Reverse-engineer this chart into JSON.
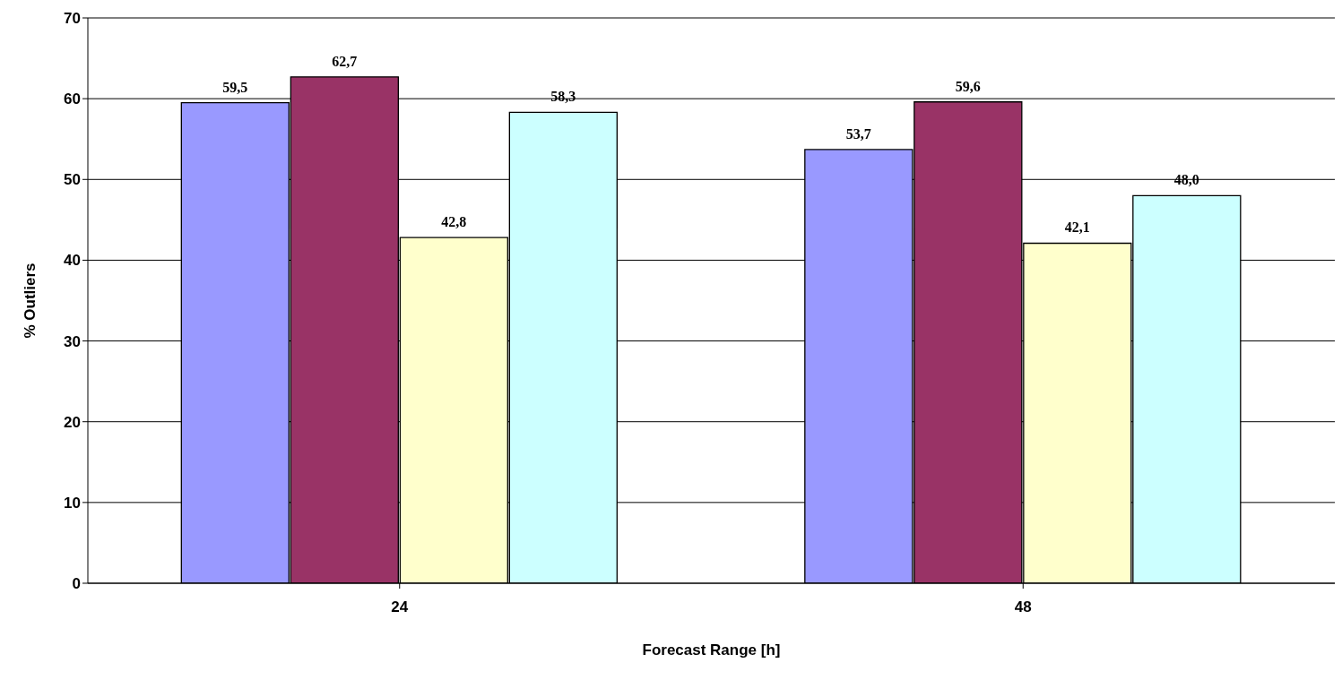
{
  "chart_data": {
    "type": "bar",
    "xlabel": "Forecast Range [h]",
    "ylabel": "% Outliers",
    "categories": [
      "24",
      "48"
    ],
    "series": [
      {
        "color": "#9999ff",
        "values": [
          59.5,
          53.7
        ],
        "value_labels": [
          "59,5",
          "53,7"
        ]
      },
      {
        "color": "#993366",
        "values": [
          62.7,
          59.6
        ],
        "value_labels": [
          "62,7",
          "59,6"
        ]
      },
      {
        "color": "#ffffcc",
        "values": [
          42.8,
          42.1
        ],
        "value_labels": [
          "42,8",
          "42,1"
        ]
      },
      {
        "color": "#ccffff",
        "values": [
          58.3,
          48.0
        ],
        "value_labels": [
          "58,3",
          "48,0"
        ]
      }
    ],
    "ylim": [
      0,
      70
    ],
    "yticks": [
      0,
      10,
      20,
      30,
      40,
      50,
      60,
      70
    ],
    "grid": "y",
    "legend": false
  }
}
